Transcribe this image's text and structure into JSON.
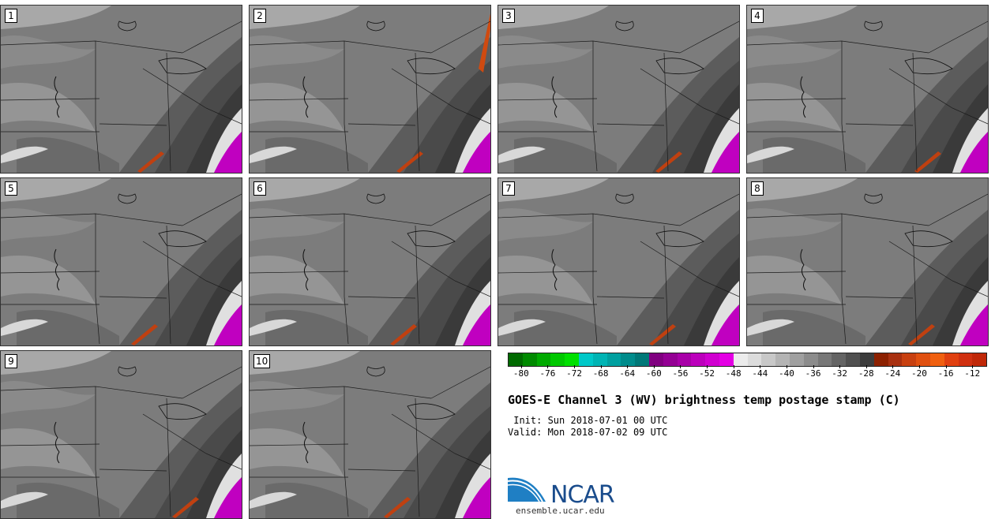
{
  "panels": [
    {
      "label": "1"
    },
    {
      "label": "2"
    },
    {
      "label": "3"
    },
    {
      "label": "4"
    },
    {
      "label": "5"
    },
    {
      "label": "6"
    },
    {
      "label": "7"
    },
    {
      "label": "8"
    },
    {
      "label": "9"
    },
    {
      "label": "10"
    }
  ],
  "colorbar": {
    "tick_labels": [
      "-80",
      "-76",
      "-72",
      "-68",
      "-64",
      "-60",
      "-56",
      "-52",
      "-48",
      "-44",
      "-40",
      "-36",
      "-32",
      "-28",
      "-24",
      "-20",
      "-16",
      "-12"
    ],
    "min": -82,
    "max": -10,
    "colors": [
      "#006a00",
      "#008a00",
      "#00aa00",
      "#00c800",
      "#00e000",
      "#00c8c8",
      "#00b4b4",
      "#00a0a0",
      "#008c8c",
      "#007878",
      "#800080",
      "#940094",
      "#a800a8",
      "#bc00bc",
      "#d000d0",
      "#e400e4",
      "#ececec",
      "#dcdcdc",
      "#c8c8c8",
      "#b4b4b4",
      "#a0a0a0",
      "#8c8c8c",
      "#787878",
      "#646464",
      "#505050",
      "#3c3c3c",
      "#8c2000",
      "#a83010",
      "#c84010",
      "#e05010",
      "#f06010",
      "#e04010",
      "#d03010",
      "#c02808"
    ]
  },
  "title": "GOES-E Channel 3 (WV) brightness temp postage stamp (C)",
  "init": " Init: Sun 2018-07-01 00 UTC",
  "valid": "Valid: Mon 2018-07-02 09 UTC",
  "logo": {
    "text": "NCAR",
    "brand_color": "#1a4c8c",
    "swoosh_color": "#1f7fc4"
  },
  "site": "ensemble.ucar.edu"
}
